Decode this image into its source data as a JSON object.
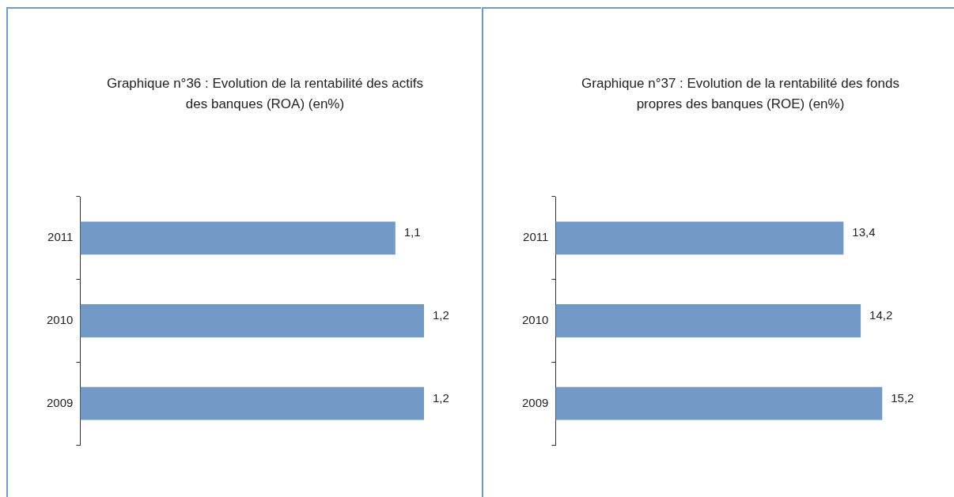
{
  "chart_data": [
    {
      "type": "bar",
      "orientation": "horizontal",
      "title": "Graphique n°36 : Evolution de la rentabilité des actifs des banques (ROA) (en%)",
      "categories": [
        "2011",
        "2010",
        "2009"
      ],
      "values": [
        1.1,
        1.2,
        1.2
      ],
      "value_labels": [
        "1,1",
        "1,2",
        "1,2"
      ],
      "color": "#7399c6"
    },
    {
      "type": "bar",
      "orientation": "horizontal",
      "title": "Graphique n°37 : Evolution de la rentabilité des fonds propres des banques (ROE) (en%)",
      "categories": [
        "2011",
        "2010",
        "2009"
      ],
      "values": [
        13.4,
        14.2,
        15.2
      ],
      "value_labels": [
        "13,4",
        "14,2",
        "15,2"
      ],
      "color": "#7399c6"
    }
  ]
}
